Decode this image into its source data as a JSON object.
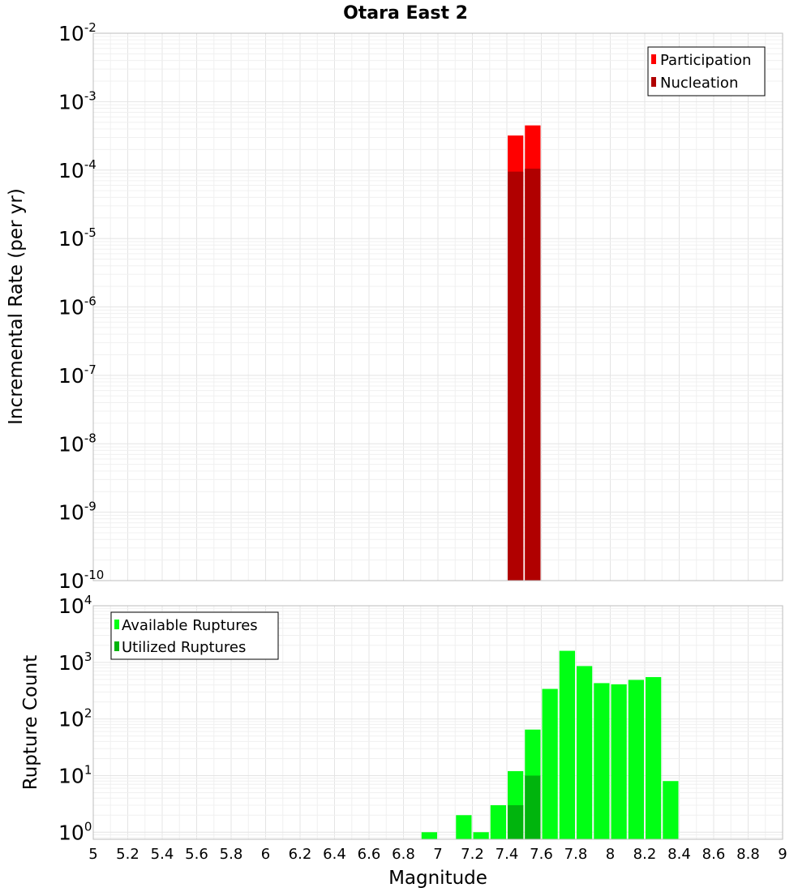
{
  "title": "Otara East 2",
  "colors": {
    "participation": "#ff0000",
    "nucleation": "#b00000",
    "available": "#00ff14",
    "utilized": "#00b40d"
  },
  "chart_data": [
    {
      "type": "bar",
      "title": "Otara East 2",
      "xlabel": "Magnitude",
      "ylabel": "Incremental Rate (per yr)",
      "yscale": "log",
      "xlim": [
        5,
        9
      ],
      "ylim": [
        1e-10,
        0.01
      ],
      "y_tick_exponents": [
        -2,
        -3,
        -4,
        -5,
        -6,
        -7,
        -8,
        -9,
        -10
      ],
      "y_tick_base": "10",
      "bin_width": 0.1,
      "legend": {
        "position": "top-right"
      },
      "series": [
        {
          "name": "Participation",
          "x": [
            7.45,
            7.55
          ],
          "values": [
            0.00032,
            0.00045
          ]
        },
        {
          "name": "Nucleation",
          "x": [
            7.45,
            7.55
          ],
          "values": [
            9.5e-05,
            0.000105
          ]
        }
      ]
    },
    {
      "type": "bar",
      "xlabel": "Magnitude",
      "ylabel": "Rupture Count",
      "yscale": "log",
      "xlim": [
        5,
        9
      ],
      "ylim": [
        0.75,
        10000
      ],
      "y_tick_exponents": [
        4,
        3,
        2,
        1,
        0
      ],
      "y_tick_base": "10",
      "x_ticks": [
        "5",
        "5.2",
        "5.4",
        "5.6",
        "5.8",
        "6",
        "6.2",
        "6.4",
        "6.6",
        "6.8",
        "7",
        "7.2",
        "7.4",
        "7.6",
        "7.8",
        "8",
        "8.2",
        "8.4",
        "8.6",
        "8.8",
        "9"
      ],
      "bin_width": 0.1,
      "legend": {
        "position": "top-left"
      },
      "series": [
        {
          "name": "Available Ruptures",
          "x": [
            6.95,
            7.15,
            7.25,
            7.35,
            7.45,
            7.55,
            7.65,
            7.75,
            7.85,
            7.95,
            8.05,
            8.15,
            8.25,
            8.35
          ],
          "values": [
            1,
            2,
            1,
            3,
            12,
            65,
            340,
            1600,
            860,
            430,
            410,
            490,
            550,
            8
          ]
        },
        {
          "name": "Utilized Ruptures",
          "x": [
            7.45,
            7.55
          ],
          "values": [
            3,
            10
          ]
        }
      ]
    }
  ]
}
